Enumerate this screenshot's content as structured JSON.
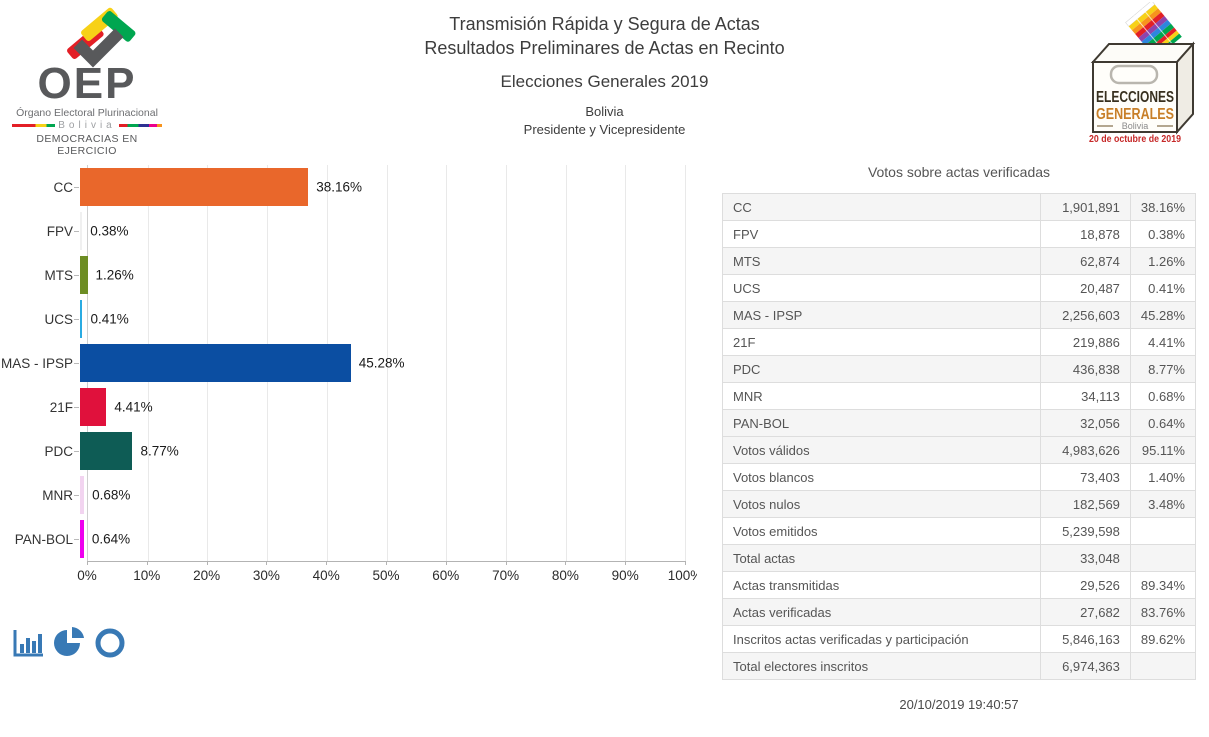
{
  "header": {
    "title_line1": "Transmisión Rápida y Segura de Actas",
    "title_line2": "Resultados Preliminares de Actas en Recinto",
    "subtitle": "Elecciones Generales 2019",
    "country": "Bolivia",
    "race": "Presidente y Vicepresidente",
    "oep": {
      "acronym": "OEP",
      "org_name": "Órgano Electoral Plurinacional",
      "country": "Bolivia",
      "motto": "DEMOCRACIAS EN EJERCICIO"
    },
    "eg_logo": {
      "line1": "ELECCIONES",
      "line2": "GENERALES",
      "line3": "Bolivia",
      "line4": "20 de octubre de 2019"
    }
  },
  "chart_data": {
    "type": "bar",
    "orientation": "horizontal",
    "categories": [
      "CC",
      "FPV",
      "MTS",
      "UCS",
      "MAS - IPSP",
      "21F",
      "PDC",
      "MNR",
      "PAN-BOL"
    ],
    "values": [
      38.16,
      0.38,
      1.26,
      0.41,
      45.28,
      4.41,
      8.77,
      0.68,
      0.64
    ],
    "value_labels": [
      "38.16%",
      "0.38%",
      "1.26%",
      "0.41%",
      "45.28%",
      "4.41%",
      "8.77%",
      "0.68%",
      "0.64%"
    ],
    "colors": [
      "#e9672b",
      "#f0f0f0",
      "#6d8d24",
      "#29abe2",
      "#0b4ea2",
      "#e0113c",
      "#0e5c55",
      "#f2d4f0",
      "#ee00ee"
    ],
    "xlim": [
      0,
      100
    ],
    "x_tick_labels": [
      "0%",
      "10%",
      "20%",
      "30%",
      "40%",
      "50%",
      "60%",
      "70%",
      "80%",
      "90%",
      "100%"
    ],
    "grid": true,
    "legend": false,
    "title": ""
  },
  "toolbar": {
    "icon_color": "#3879b5",
    "chart_types": [
      "bar-chart",
      "pie-chart",
      "donut-chart"
    ]
  },
  "table": {
    "title": "Votos sobre actas verificadas",
    "party_rows": [
      {
        "label": "CC",
        "votes": "1,901,891",
        "pct": "38.16%"
      },
      {
        "label": "FPV",
        "votes": "18,878",
        "pct": "0.38%"
      },
      {
        "label": "MTS",
        "votes": "62,874",
        "pct": "1.26%"
      },
      {
        "label": "UCS",
        "votes": "20,487",
        "pct": "0.41%"
      },
      {
        "label": "MAS - IPSP",
        "votes": "2,256,603",
        "pct": "45.28%"
      },
      {
        "label": "21F",
        "votes": "219,886",
        "pct": "4.41%"
      },
      {
        "label": "PDC",
        "votes": "436,838",
        "pct": "8.77%"
      },
      {
        "label": "MNR",
        "votes": "34,113",
        "pct": "0.68%"
      },
      {
        "label": "PAN-BOL",
        "votes": "32,056",
        "pct": "0.64%"
      }
    ],
    "summary_rows": [
      {
        "label": "Votos válidos",
        "votes": "4,983,626",
        "pct": "95.11%"
      },
      {
        "label": "Votos blancos",
        "votes": "73,403",
        "pct": "1.40%"
      },
      {
        "label": "Votos nulos",
        "votes": "182,569",
        "pct": "3.48%"
      },
      {
        "label": "Votos emitidos",
        "votes": "5,239,598",
        "pct": ""
      },
      {
        "label": "Total actas",
        "votes": "33,048",
        "pct": ""
      },
      {
        "label": "Actas transmitidas",
        "votes": "29,526",
        "pct": "89.34%"
      },
      {
        "label": "Actas verificadas",
        "votes": "27,682",
        "pct": "83.76%"
      },
      {
        "label": "Inscritos actas verificadas y participación",
        "votes": "5,846,163",
        "pct": "89.62%"
      },
      {
        "label": "Total electores inscritos",
        "votes": "6,974,363",
        "pct": ""
      }
    ]
  },
  "footer": {
    "timestamp": "20/10/2019 19:40:57"
  }
}
